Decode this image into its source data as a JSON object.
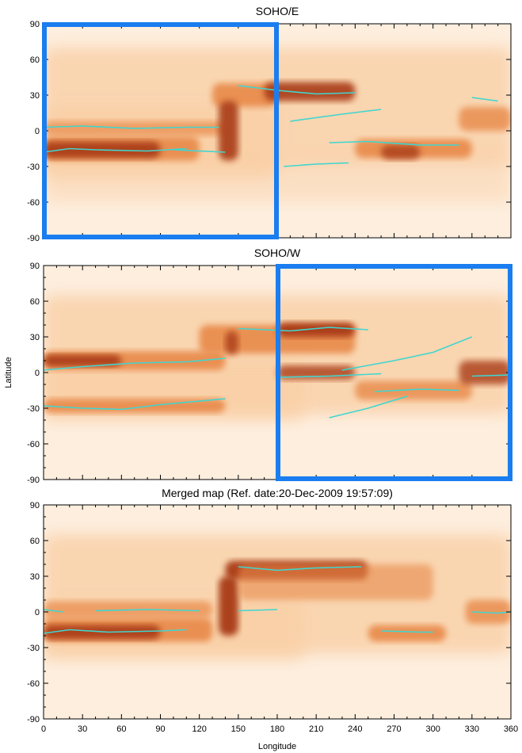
{
  "chart_data": [
    {
      "type": "heatmap",
      "title": "SOHO/E",
      "ylabel": "",
      "xlabel": "",
      "xlim": [
        0,
        360
      ],
      "ylim": [
        -90,
        90
      ],
      "yticks": [
        "90",
        "60",
        "30",
        "0",
        "-30",
        "-60",
        "-90"
      ],
      "xticks": [],
      "highlight_box_lon": [
        0,
        180
      ],
      "features": [
        {
          "lon": [
            0,
            360
          ],
          "lat_centers": [
            28,
            2,
            -14
          ],
          "note": "bands"
        }
      ]
    },
    {
      "type": "heatmap",
      "title": "SOHO/W",
      "ylabel": "Latitude",
      "xlabel": "",
      "xlim": [
        0,
        360
      ],
      "ylim": [
        -90,
        90
      ],
      "yticks": [
        "90",
        "60",
        "30",
        "0",
        "-30",
        "-60",
        "-90"
      ],
      "xticks": [],
      "highlight_box_lon": [
        180,
        360
      ]
    },
    {
      "type": "heatmap",
      "title": "Merged map (Ref. date:20-Dec-2009 19:57:09)",
      "ylabel": "",
      "xlabel": "Longitude",
      "xlim": [
        0,
        360
      ],
      "ylim": [
        -90,
        90
      ],
      "yticks": [
        "90",
        "60",
        "30",
        "0",
        "-30",
        "-60",
        "-90"
      ],
      "xticks": [
        "0",
        "30",
        "60",
        "90",
        "120",
        "150",
        "180",
        "210",
        "240",
        "270",
        "300",
        "330",
        "360"
      ]
    }
  ],
  "colors": {
    "background": "#fdeede",
    "light": "#f9cfa5",
    "mid": "#e8894a",
    "dark": "#a83a12",
    "darkest": "#5a1206",
    "neutral_line": "#3fd6d0",
    "highlight_box": "#1a7df0"
  }
}
